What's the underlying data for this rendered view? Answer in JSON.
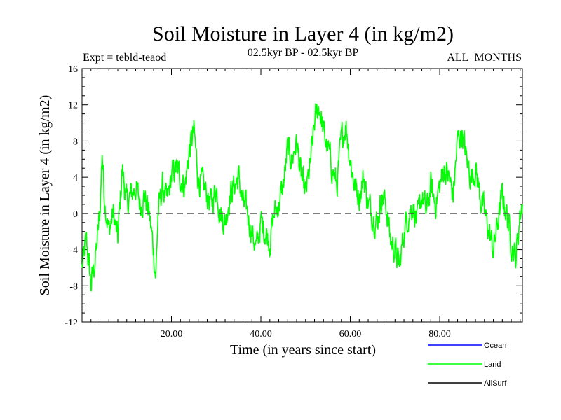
{
  "chart_data": {
    "type": "line",
    "title": "Soil Moisture in Layer 4 (in kg/m2)",
    "subtitle": "02.5kyr BP - 02.5kyr BP",
    "experiment": "Expt = tebld-teaod",
    "period": "ALL_MONTHS",
    "xlabel": "Time (in years since start)",
    "ylabel": "Soil Moisture in Layer 4 (in kg/m2)",
    "xlim": [
      0,
      98.5
    ],
    "ylim": [
      -12,
      16
    ],
    "x_ticks": [
      20,
      40,
      60,
      80
    ],
    "x_tick_labels": [
      "20.00",
      "40.00",
      "60.00",
      "80.00"
    ],
    "y_ticks": [
      -12,
      -8,
      -4,
      0,
      4,
      8,
      12,
      16
    ],
    "y_tick_labels": [
      "-12",
      "-8",
      "-4",
      "0",
      "4",
      "8",
      "12",
      "16"
    ],
    "reference_line": 0,
    "legend": [
      {
        "name": "Ocean",
        "color": "#0000ff"
      },
      {
        "name": "Land",
        "color": "#00ff00"
      },
      {
        "name": "AllSurf",
        "color": "#000000"
      }
    ],
    "series": [
      {
        "name": "Land",
        "color": "#00ff00",
        "x": [
          0,
          1,
          2,
          3,
          4,
          4.5,
          5,
          6,
          7,
          8,
          9,
          10,
          11,
          12,
          13,
          14,
          15,
          16,
          16.5,
          17,
          18,
          19,
          20,
          21,
          22,
          23,
          24,
          25,
          26,
          27,
          28,
          29,
          30,
          31,
          32,
          33,
          34,
          35,
          36,
          37,
          38,
          39,
          40,
          41,
          42,
          43,
          44,
          45,
          46,
          47,
          48,
          49,
          50,
          51,
          52,
          53,
          54,
          55,
          56,
          57,
          58,
          59,
          60,
          61,
          62,
          63,
          64,
          65,
          66,
          67,
          68,
          69,
          70,
          71,
          72,
          73,
          74,
          75,
          76,
          77,
          78,
          79,
          80,
          81,
          82,
          83,
          84,
          85,
          86,
          87,
          88,
          89,
          90,
          91,
          92,
          93,
          94,
          95,
          96,
          97,
          98,
          98.5
        ],
        "values": [
          -6,
          -3,
          -8,
          -5,
          0,
          7,
          2,
          -2,
          0,
          -3,
          5,
          1,
          2,
          3,
          1,
          2,
          0,
          -4,
          -7,
          0,
          3,
          1,
          4,
          5,
          4,
          3,
          7,
          9,
          4,
          3,
          2,
          1,
          3,
          0,
          -1,
          2,
          3,
          4,
          1,
          0,
          -2,
          -4,
          -1,
          -2,
          -3,
          0,
          1,
          3,
          7,
          6,
          8,
          4,
          2,
          5,
          10,
          12,
          9,
          7,
          5,
          3,
          8,
          10,
          6,
          3,
          2,
          4,
          1,
          0,
          -1,
          2,
          1,
          -3,
          -4,
          -6,
          -2,
          0,
          1,
          -1,
          2,
          0,
          3,
          1,
          3,
          5,
          4,
          2,
          8,
          9,
          6,
          4,
          5,
          2,
          0,
          -2,
          -4,
          -1,
          2,
          0,
          -3,
          -5,
          0,
          1
        ]
      }
    ]
  }
}
